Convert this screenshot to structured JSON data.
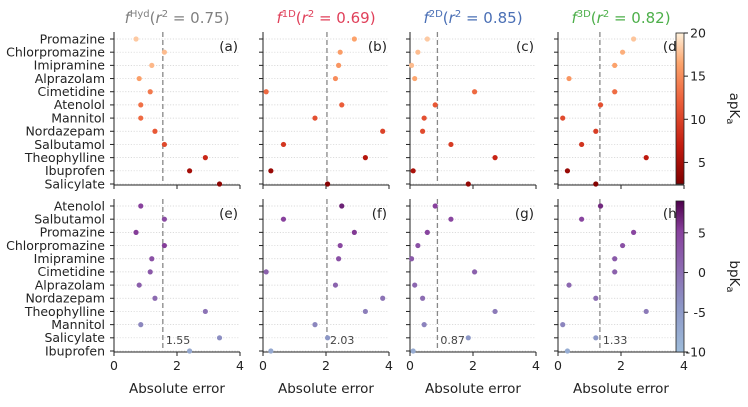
{
  "chart_data": {
    "type": "scatter",
    "panels_top": [
      {
        "letter": "(a)",
        "title": "f^{Hyd}(r^2 = 0.75)",
        "title_color": "#808080",
        "mean_error": 1.55,
        "points": [
          [
            "Promazine",
            0.7,
            18.2
          ],
          [
            "Chlorpromazine",
            1.6,
            17.6
          ],
          [
            "Imipramine",
            1.2,
            17.4
          ],
          [
            "Alprazolam",
            0.8,
            16.2
          ],
          [
            "Cimetidine",
            1.15,
            13.8
          ],
          [
            "Atenolol",
            0.85,
            13.2
          ],
          [
            "Mannitol",
            0.85,
            12.8
          ],
          [
            "Nordazepam",
            1.3,
            11.6
          ],
          [
            "Salbutamol",
            1.6,
            10.5
          ],
          [
            "Theophylline",
            2.9,
            7.8
          ],
          [
            "Ibuprofen",
            2.4,
            5.0
          ],
          [
            "Salicylate",
            3.35,
            3.5
          ]
        ]
      },
      {
        "letter": "(b)",
        "title": "f^{1D}(r^2 = 0.69)",
        "title_color": "#e0405a",
        "mean_error": 2.03,
        "points": [
          [
            "Promazine",
            2.9,
            16.4
          ],
          [
            "Chlorpromazine",
            2.45,
            16.0
          ],
          [
            "Imipramine",
            2.4,
            15.6
          ],
          [
            "Alprazolam",
            2.3,
            15.0
          ],
          [
            "Cimetidine",
            0.1,
            12.8
          ],
          [
            "Atenolol",
            2.5,
            12.0
          ],
          [
            "Mannitol",
            1.65,
            11.0
          ],
          [
            "Nordazepam",
            3.8,
            10.0
          ],
          [
            "Salbutamol",
            0.65,
            9.0
          ],
          [
            "Theophylline",
            3.25,
            6.0
          ],
          [
            "Ibuprofen",
            0.25,
            4.2
          ],
          [
            "Salicylate",
            2.05,
            3.0
          ]
        ]
      },
      {
        "letter": "(c)",
        "title": "f^{2D}(r^2 = 0.85)",
        "title_color": "#4a6fb5",
        "mean_error": 0.87,
        "points": [
          [
            "Promazine",
            0.55,
            18.2
          ],
          [
            "Chlorpromazine",
            0.25,
            17.6
          ],
          [
            "Imipramine",
            0.05,
            17.6
          ],
          [
            "Alprazolam",
            0.15,
            16.6
          ],
          [
            "Cimetidine",
            2.05,
            12.8
          ],
          [
            "Atenolol",
            0.8,
            11.6
          ],
          [
            "Mannitol",
            0.45,
            11.0
          ],
          [
            "Nordazepam",
            0.4,
            10.6
          ],
          [
            "Salbutamol",
            1.3,
            9.4
          ],
          [
            "Theophylline",
            2.7,
            7.6
          ],
          [
            "Ibuprofen",
            0.1,
            5.4
          ],
          [
            "Salicylate",
            1.85,
            3.8
          ]
        ]
      },
      {
        "letter": "(d)",
        "title": "f^{3D}(r^2 = 0.82)",
        "title_color": "#4daf4a",
        "mean_error": 1.33,
        "points": [
          [
            "Promazine",
            2.4,
            18.0
          ],
          [
            "Chlorpromazine",
            2.05,
            17.0
          ],
          [
            "Imipramine",
            1.8,
            16.4
          ],
          [
            "Alprazolam",
            0.35,
            15.6
          ],
          [
            "Cimetidine",
            1.8,
            13.0
          ],
          [
            "Atenolol",
            1.35,
            11.0
          ],
          [
            "Mannitol",
            0.15,
            10.6
          ],
          [
            "Nordazepam",
            1.2,
            9.6
          ],
          [
            "Salbutamol",
            0.75,
            8.8
          ],
          [
            "Theophylline",
            2.8,
            6.6
          ],
          [
            "Ibuprofen",
            0.3,
            4.2
          ],
          [
            "Salicylate",
            1.2,
            2.8
          ]
        ]
      }
    ],
    "panels_bottom": [
      {
        "letter": "(e)",
        "mean_error": 1.55,
        "points": [
          [
            "Atenolol",
            0.85,
            5.2
          ],
          [
            "Salbutamol",
            1.6,
            4.0
          ],
          [
            "Promazine",
            0.7,
            5.4
          ],
          [
            "Chlorpromazine",
            1.6,
            5.4
          ],
          [
            "Imipramine",
            1.2,
            3.4
          ],
          [
            "Cimetidine",
            1.15,
            2.6
          ],
          [
            "Alprazolam",
            0.8,
            1.8
          ],
          [
            "Nordazepam",
            1.3,
            0.6
          ],
          [
            "Theophylline",
            2.9,
            -0.4
          ],
          [
            "Mannitol",
            0.85,
            -2.6
          ],
          [
            "Salicylate",
            3.35,
            -3.4
          ],
          [
            "Ibuprofen",
            2.4,
            -7.0
          ]
        ]
      },
      {
        "letter": "(f)",
        "mean_error": 2.03,
        "points": [
          [
            "Atenolol",
            2.5,
            7.0
          ],
          [
            "Salbutamol",
            0.65,
            5.2
          ],
          [
            "Promazine",
            2.9,
            5.6
          ],
          [
            "Chlorpromazine",
            2.45,
            4.4
          ],
          [
            "Imipramine",
            2.4,
            3.4
          ],
          [
            "Cimetidine",
            0.1,
            1.6
          ],
          [
            "Alprazolam",
            2.3,
            1.2
          ],
          [
            "Nordazepam",
            3.8,
            -0.4
          ],
          [
            "Theophylline",
            3.25,
            -1.6
          ],
          [
            "Mannitol",
            1.65,
            -2.6
          ],
          [
            "Salicylate",
            2.05,
            -4.4
          ],
          [
            "Ibuprofen",
            0.25,
            -7.0
          ]
        ]
      },
      {
        "letter": "(g)",
        "mean_error": 0.87,
        "points": [
          [
            "Atenolol",
            0.8,
            5.2
          ],
          [
            "Salbutamol",
            1.3,
            4.6
          ],
          [
            "Promazine",
            0.55,
            4.8
          ],
          [
            "Chlorpromazine",
            0.25,
            3.4
          ],
          [
            "Imipramine",
            0.05,
            2.4
          ],
          [
            "Cimetidine",
            2.05,
            1.6
          ],
          [
            "Alprazolam",
            0.15,
            0.8
          ],
          [
            "Nordazepam",
            0.4,
            0.2
          ],
          [
            "Theophylline",
            2.7,
            -1.2
          ],
          [
            "Mannitol",
            0.45,
            -2.2
          ],
          [
            "Salicylate",
            1.85,
            -4.6
          ],
          [
            "Ibuprofen",
            0.1,
            -7.4
          ]
        ]
      },
      {
        "letter": "(h)",
        "mean_error": 1.33,
        "points": [
          [
            "Atenolol",
            1.35,
            6.6
          ],
          [
            "Salbutamol",
            0.75,
            4.8
          ],
          [
            "Promazine",
            2.4,
            4.6
          ],
          [
            "Chlorpromazine",
            2.05,
            3.4
          ],
          [
            "Imipramine",
            1.8,
            2.4
          ],
          [
            "Cimetidine",
            1.8,
            1.6
          ],
          [
            "Alprazolam",
            0.35,
            0.8
          ],
          [
            "Nordazepam",
            1.2,
            0.2
          ],
          [
            "Theophylline",
            2.8,
            -1.2
          ],
          [
            "Mannitol",
            0.15,
            -2.4
          ],
          [
            "Salicylate",
            1.2,
            -4.6
          ],
          [
            "Ibuprofen",
            0.3,
            -7.6
          ]
        ]
      }
    ],
    "top_row_categories": [
      "Promazine",
      "Chlorpromazine",
      "Imipramine",
      "Alprazolam",
      "Cimetidine",
      "Atenolol",
      "Mannitol",
      "Nordazepam",
      "Salbutamol",
      "Theophylline",
      "Ibuprofen",
      "Salicylate"
    ],
    "bottom_row_categories": [
      "Atenolol",
      "Salbutamol",
      "Promazine",
      "Chlorpromazine",
      "Imipramine",
      "Cimetidine",
      "Alprazolam",
      "Nordazepam",
      "Theophylline",
      "Mannitol",
      "Salicylate",
      "Ibuprofen"
    ],
    "xlabel": "Absolute error",
    "xlim": [
      0,
      4
    ],
    "xticks": [
      0,
      2,
      4
    ],
    "colorbar_top": {
      "label": "apKa",
      "ticks": [
        5,
        10,
        15,
        20
      ],
      "range": [
        2.5,
        20
      ]
    },
    "colorbar_bottom": {
      "label": "bpKa",
      "ticks": [
        5,
        0,
        -5,
        -10
      ],
      "range": [
        -10,
        9
      ]
    },
    "mean_error_labels": [
      "1.55",
      "2.03",
      "0.87",
      "1.33"
    ],
    "colors": {
      "grid": "#d0d0d0",
      "ref_line": "#888888"
    }
  }
}
